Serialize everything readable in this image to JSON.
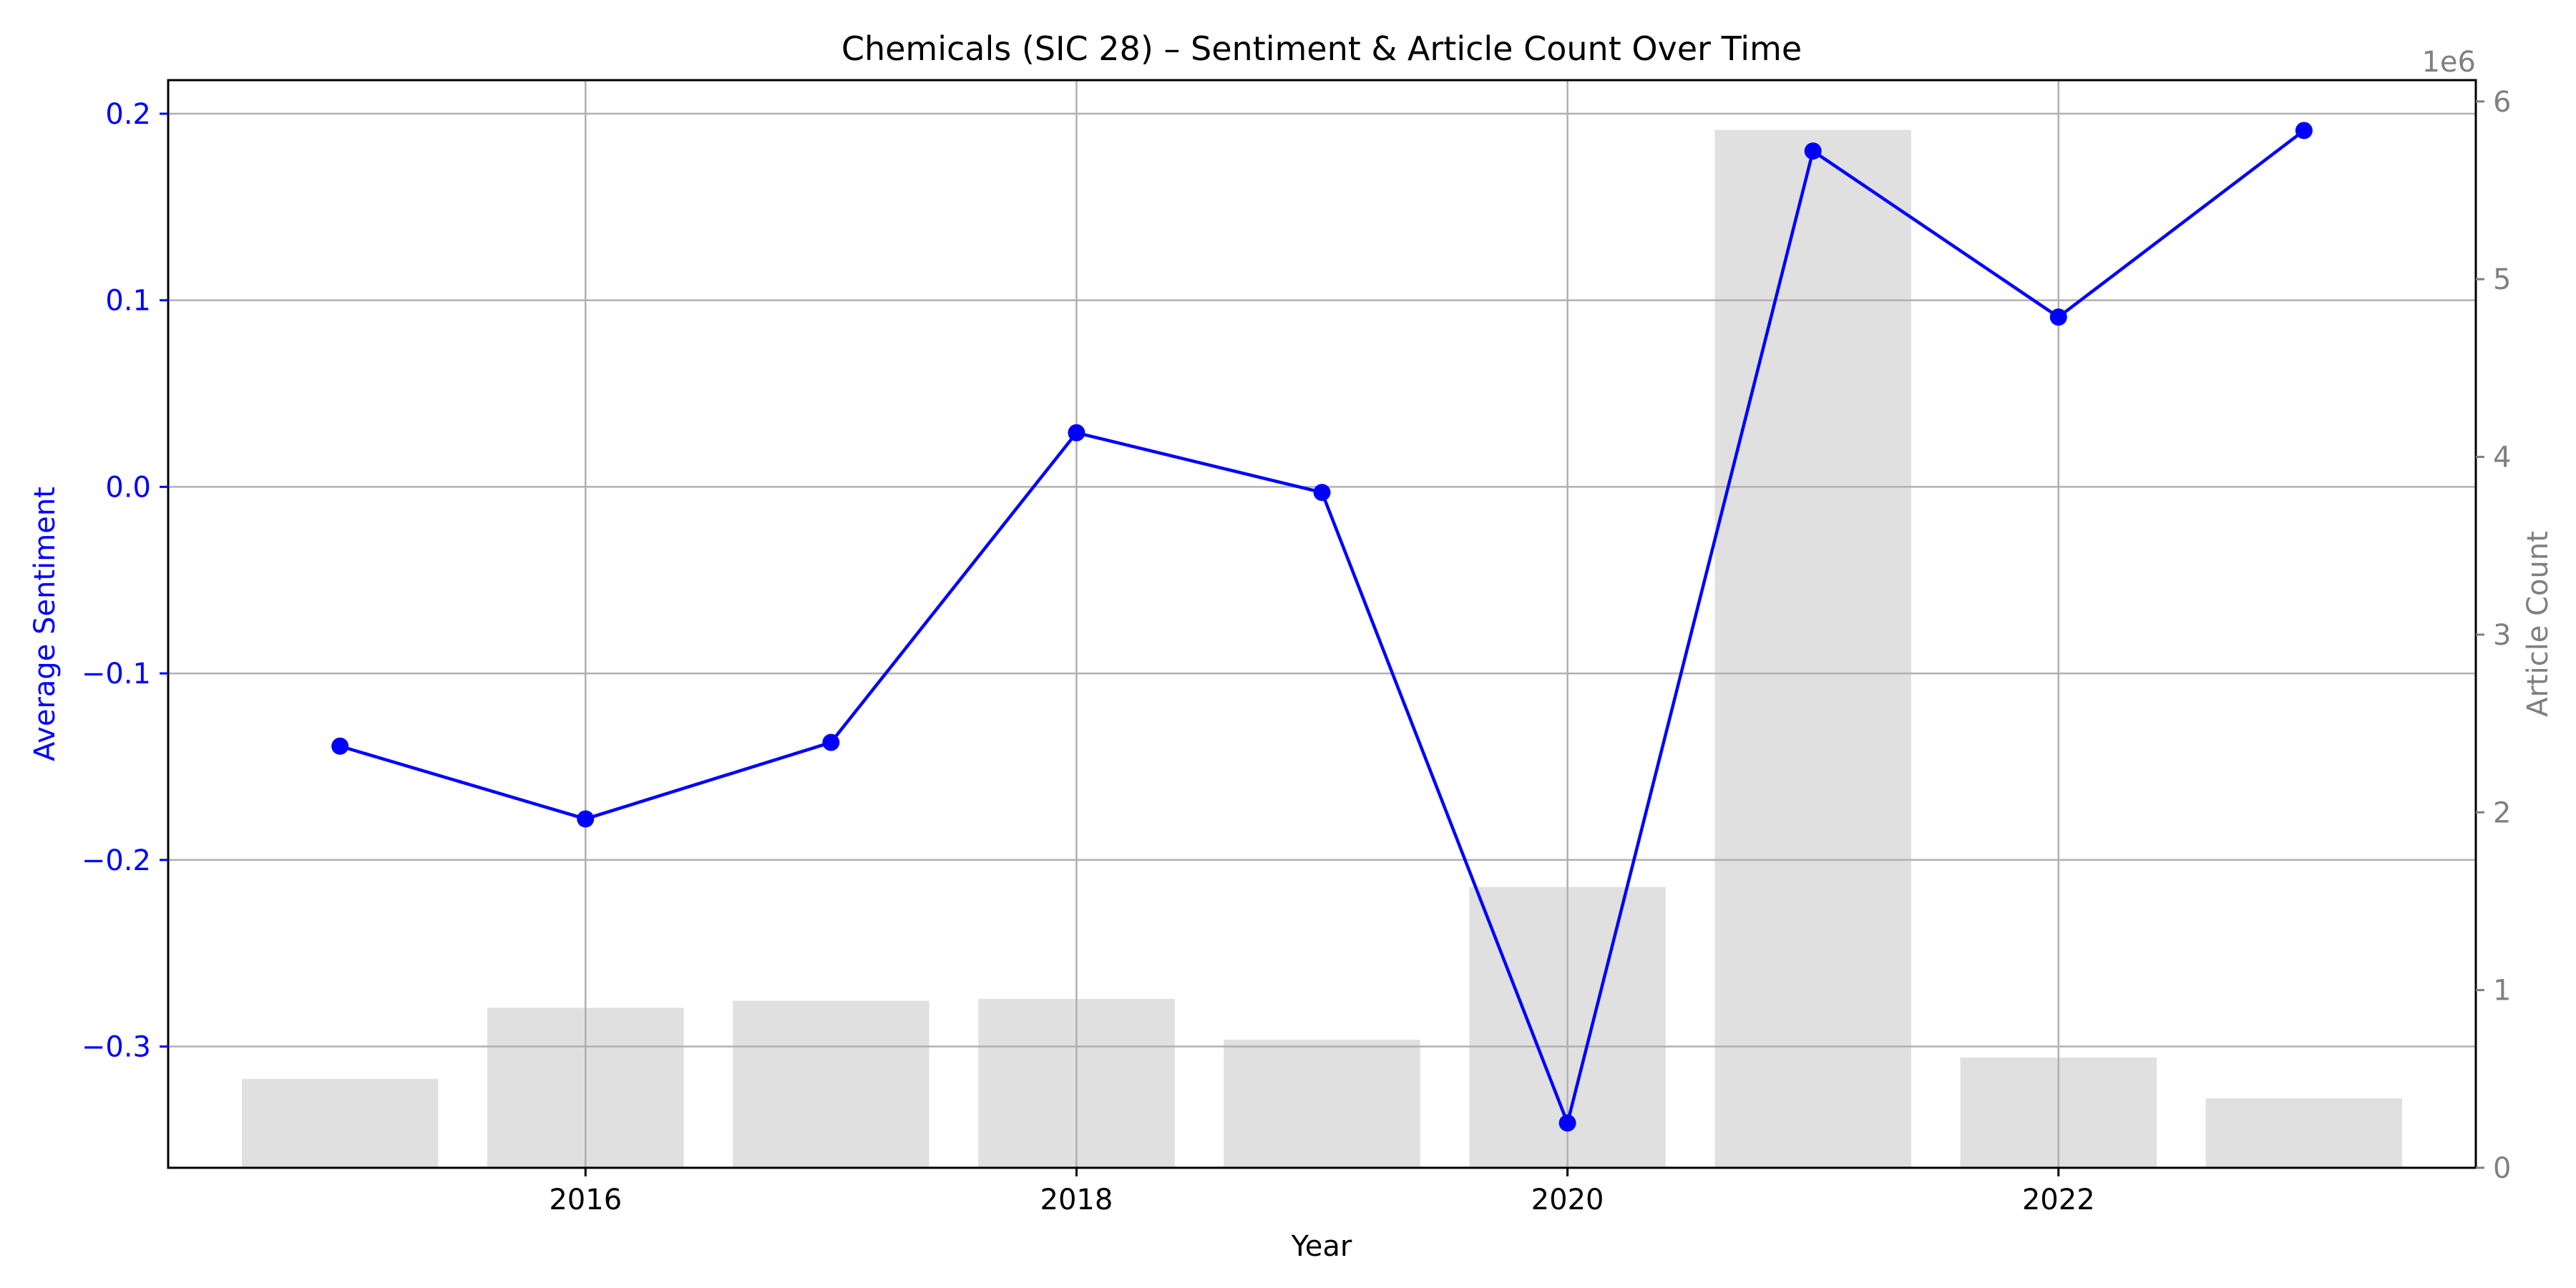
{
  "chart_data": {
    "type": "bar+line",
    "title": "Chemicals (SIC 28) – Sentiment & Article Count Over Time",
    "xlabel": "Year",
    "ylabel_left": "Average Sentiment",
    "ylabel_right": "Article Count",
    "right_axis_offset_label": "1e6",
    "x": [
      2015,
      2016,
      2017,
      2018,
      2019,
      2020,
      2021,
      2022,
      2023
    ],
    "x_ticks": [
      2016,
      2018,
      2020,
      2022
    ],
    "y_left_ticks": [
      0.2,
      0.1,
      0.0,
      -0.1,
      -0.2,
      -0.3
    ],
    "y_right_ticks": [
      0,
      1,
      2,
      3,
      4,
      5,
      6
    ],
    "xlim": [
      2014.3,
      2023.7
    ],
    "ylim_left": [
      -0.365,
      0.218
    ],
    "ylim_right": [
      0,
      6120000
    ],
    "grid": true,
    "series": [
      {
        "name": "Article Count",
        "type": "bar",
        "axis": "right",
        "color": "#e0e0e0",
        "values": [
          500000,
          900000,
          940000,
          950000,
          720000,
          1580000,
          5840000,
          620000,
          390000
        ]
      },
      {
        "name": "Average Sentiment",
        "type": "line",
        "axis": "left",
        "color": "#0000ff",
        "values": [
          -0.139,
          -0.178,
          -0.137,
          0.029,
          -0.003,
          -0.341,
          0.18,
          0.091,
          0.191
        ]
      }
    ],
    "colors": {
      "left_axis": "#0000ff",
      "right_axis": "#808080",
      "grid": "#b0b0b0",
      "text": "#000000"
    }
  }
}
